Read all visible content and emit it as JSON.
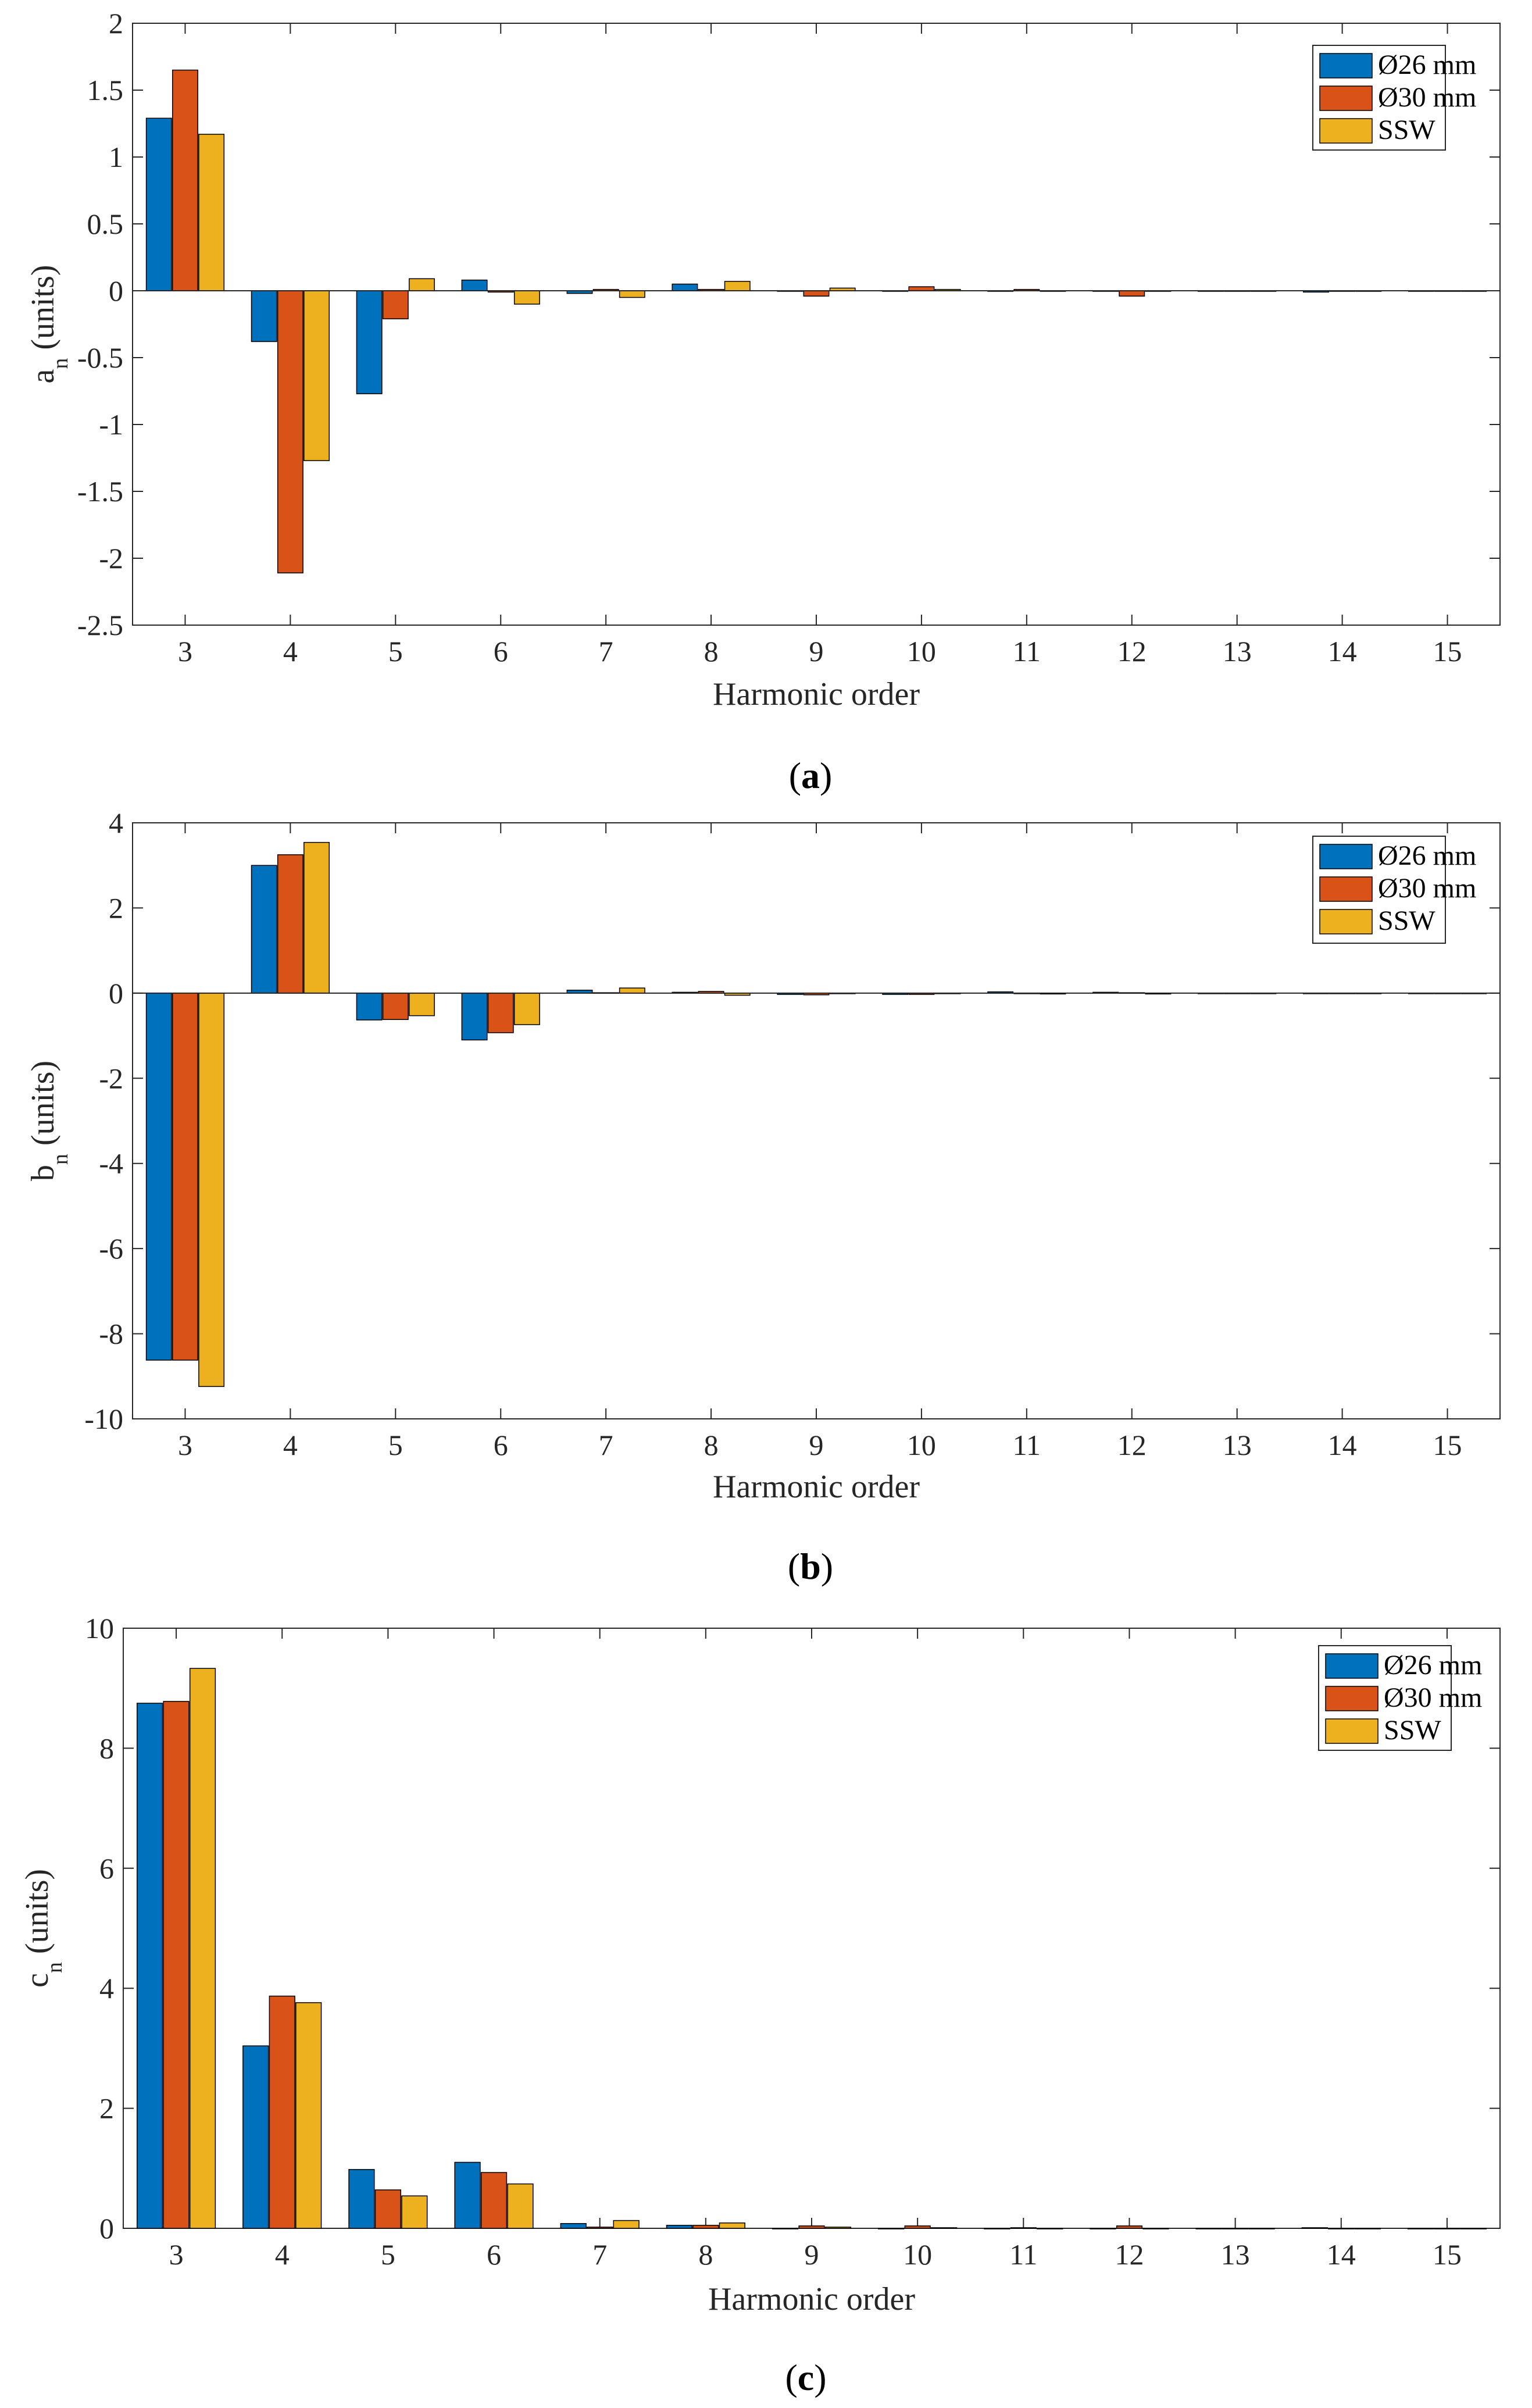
{
  "chart_data": [
    {
      "id": "a",
      "type": "bar",
      "caption_letter": "a",
      "caption_open": "(",
      "caption_close": ")",
      "xlabel": "Harmonic order",
      "ylabel_main": "a",
      "ylabel_sub": "n",
      "ylabel_units": " (units)",
      "categories": [
        "3",
        "4",
        "5",
        "6",
        "7",
        "8",
        "9",
        "10",
        "11",
        "12",
        "13",
        "14",
        "15"
      ],
      "ylim": [
        -2.5,
        2
      ],
      "yticks": [
        2,
        1.5,
        1,
        0.5,
        0,
        -0.5,
        -1,
        -1.5,
        -2,
        -2.5
      ],
      "series": [
        {
          "name": "Ø26 mm",
          "color": "#0072BD",
          "values": [
            1.29,
            -0.38,
            -0.77,
            0.08,
            -0.02,
            0.05,
            0.0,
            0.0,
            0.0,
            0.0,
            0.0,
            -0.01,
            0.0
          ]
        },
        {
          "name": "Ø30 mm",
          "color": "#D95319",
          "values": [
            1.65,
            -2.11,
            -0.21,
            -0.01,
            0.01,
            0.01,
            -0.04,
            0.03,
            0.01,
            -0.04,
            0.0,
            0.0,
            0.0
          ]
        },
        {
          "name": "SSW",
          "color": "#EDB120",
          "values": [
            1.17,
            -1.27,
            0.09,
            -0.1,
            -0.05,
            0.07,
            0.02,
            0.01,
            0.0,
            0.0,
            0.0,
            0.0,
            0.0
          ]
        }
      ]
    },
    {
      "id": "b",
      "type": "bar",
      "caption_letter": "b",
      "caption_open": "(",
      "caption_close": ")",
      "xlabel": "Harmonic order",
      "ylabel_main": "b",
      "ylabel_sub": "n",
      "ylabel_units": " (units)",
      "categories": [
        "3",
        "4",
        "5",
        "6",
        "7",
        "8",
        "9",
        "10",
        "11",
        "12",
        "13",
        "14",
        "15"
      ],
      "ylim": [
        -10,
        4
      ],
      "yticks": [
        4,
        2,
        0,
        -2,
        -4,
        -6,
        -8,
        -10
      ],
      "series": [
        {
          "name": "Ø26 mm",
          "color": "#0072BD",
          "values": [
            -8.62,
            3.0,
            -0.63,
            -1.1,
            0.07,
            0.02,
            -0.03,
            -0.03,
            0.03,
            0.02,
            0.0,
            0.0,
            0.0
          ]
        },
        {
          "name": "Ø30 mm",
          "color": "#D95319",
          "values": [
            -8.62,
            3.25,
            -0.62,
            -0.93,
            0.01,
            0.04,
            -0.04,
            -0.03,
            0.0,
            0.01,
            0.0,
            0.0,
            0.0
          ]
        },
        {
          "name": "SSW",
          "color": "#EDB120",
          "values": [
            -9.24,
            3.54,
            -0.53,
            -0.74,
            0.12,
            -0.05,
            0.0,
            0.0,
            -0.02,
            -0.02,
            0.0,
            0.0,
            0.0
          ]
        }
      ]
    },
    {
      "id": "c",
      "type": "bar",
      "caption_letter": "c",
      "caption_open": "(",
      "caption_close": ")",
      "xlabel": "Harmonic order",
      "ylabel_main": "c",
      "ylabel_sub": "n",
      "ylabel_units": " (units)",
      "categories": [
        "3",
        "4",
        "5",
        "6",
        "7",
        "8",
        "9",
        "10",
        "11",
        "12",
        "13",
        "14",
        "15"
      ],
      "ylim": [
        0,
        10
      ],
      "yticks": [
        10,
        8,
        6,
        4,
        2,
        0
      ],
      "series": [
        {
          "name": "Ø26 mm",
          "color": "#0072BD",
          "values": [
            8.75,
            3.04,
            0.98,
            1.1,
            0.08,
            0.05,
            0.0,
            0.0,
            0.0,
            0.0,
            0.0,
            0.01,
            0.0
          ]
        },
        {
          "name": "Ø30 mm",
          "color": "#D95319",
          "values": [
            8.78,
            3.87,
            0.64,
            0.93,
            0.02,
            0.05,
            0.04,
            0.04,
            0.01,
            0.04,
            0.0,
            0.0,
            0.0
          ]
        },
        {
          "name": "SSW",
          "color": "#EDB120",
          "values": [
            9.33,
            3.76,
            0.54,
            0.74,
            0.13,
            0.09,
            0.02,
            0.01,
            0.0,
            0.0,
            0.0,
            0.0,
            0.0
          ]
        }
      ]
    }
  ]
}
